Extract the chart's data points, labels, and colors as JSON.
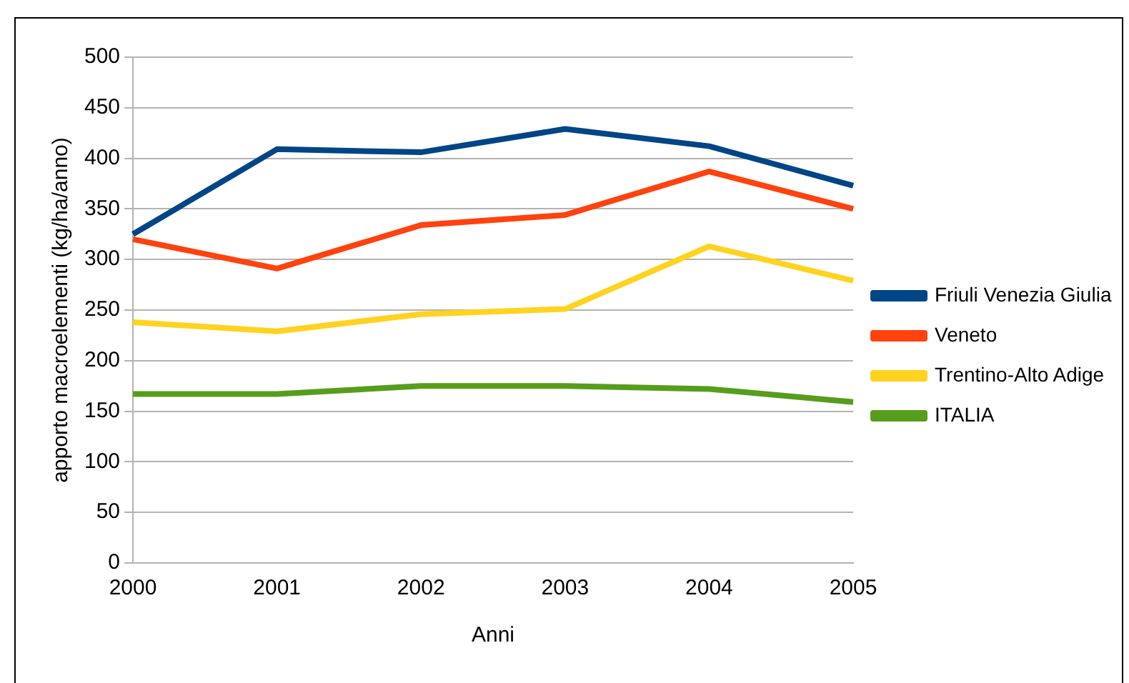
{
  "chart_data": {
    "type": "line",
    "xlabel": "Anni",
    "ylabel": "apporto macroelementi (kg/ha/anno)",
    "categories": [
      "2000",
      "2001",
      "2002",
      "2003",
      "2004",
      "2005"
    ],
    "series": [
      {
        "name": "Friuli Venezia Giulia",
        "color": "#004586",
        "values": [
          325,
          409,
          406,
          429,
          412,
          373
        ]
      },
      {
        "name": "Veneto",
        "color": "#ff420e",
        "values": [
          320,
          291,
          334,
          344,
          387,
          350
        ]
      },
      {
        "name": "Trentino-Alto Adige",
        "color": "#ffd320",
        "values": [
          238,
          229,
          246,
          251,
          313,
          279
        ]
      },
      {
        "name": "ITALIA",
        "color": "#579d1c",
        "values": [
          167,
          167,
          175,
          175,
          172,
          159
        ]
      }
    ],
    "ylim": [
      0,
      500
    ],
    "yticks": [
      0,
      50,
      100,
      150,
      200,
      250,
      300,
      350,
      400,
      450,
      500
    ],
    "grid": "y",
    "legend": "right",
    "marker": "none",
    "line_style": "solid"
  }
}
